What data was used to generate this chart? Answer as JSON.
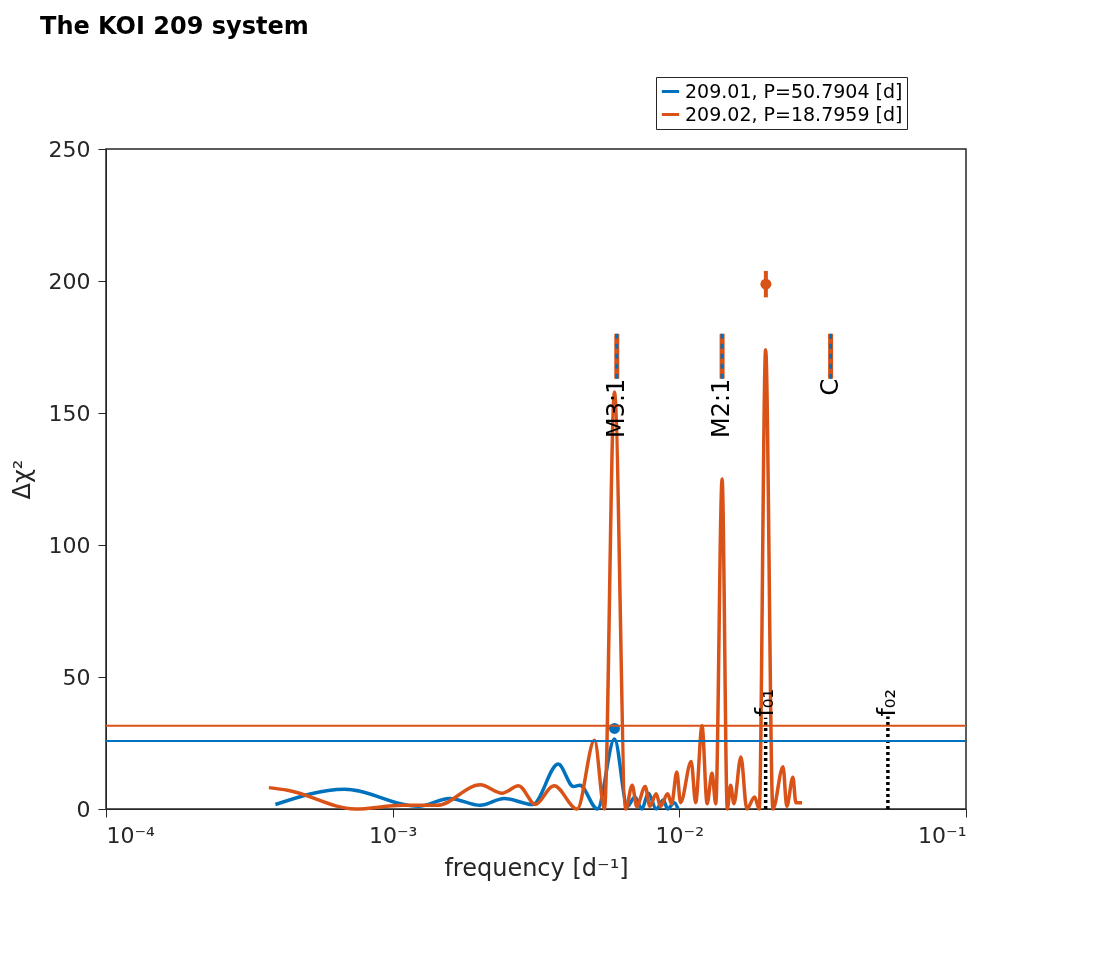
{
  "chart_data": {
    "type": "line",
    "title": "The KOI 209 system",
    "xlabel": "frequency [d⁻¹]",
    "ylabel": "Δχ²",
    "log": "x",
    "xlim": [
      0.0001,
      0.1
    ],
    "xticks": [
      {
        "value": 0.0001,
        "label": "10⁻⁴"
      },
      {
        "value": 0.001,
        "label": "10⁻³"
      },
      {
        "value": 0.01,
        "label": "10⁻²"
      },
      {
        "value": 0.1,
        "label": "10⁻¹"
      }
    ],
    "ylim": [
      0,
      250
    ],
    "yticks": [
      0,
      50,
      100,
      150,
      200,
      250
    ],
    "grid": false,
    "legend": "top right",
    "series": [
      {
        "name": "209.01, P=50.7904 [d]",
        "color": "#0072bd",
        "line_style": "solid",
        "x": [
          0.00039,
          0.00068,
          0.00123,
          0.00158,
          0.00202,
          0.00245,
          0.00308,
          0.00378,
          0.00427,
          0.0045,
          0.00518,
          0.00594,
          0.00659,
          0.007,
          0.0074,
          0.0078,
          0.0083,
          0.0088,
          0.0091,
          0.0096,
          0.0099
        ],
        "values": [
          1.7,
          7.5,
          1,
          4,
          1.4,
          4,
          1.7,
          17,
          8.5,
          9,
          0,
          26.5,
          1,
          4.5,
          0,
          6,
          0,
          3.4,
          0,
          2.4,
          0
        ]
      },
      {
        "name": "209.02, P=18.7959 [d]",
        "color": "#d95319",
        "line_style": "solid",
        "x": [
          0.00037,
          0.00043,
          0.00074,
          0.00108,
          0.00143,
          0.00202,
          0.00241,
          0.00275,
          0.00315,
          0.00359,
          0.00366,
          0.0044,
          0.00506,
          0.00548,
          0.00594,
          0.0065,
          0.00685,
          0.0071,
          0.0076,
          0.0079,
          0.0083,
          0.0086,
          0.0091,
          0.0094,
          0.0098,
          0.0101,
          0.011,
          0.0114,
          0.012,
          0.0125,
          0.013,
          0.0134,
          0.0141,
          0.0147,
          0.0151,
          0.0155,
          0.0164,
          0.0172,
          0.0183,
          0.019,
          0.02,
          0.0212,
          0.023,
          0.0237,
          0.0249,
          0.0255,
          0.0268
        ],
        "values": [
          8.1,
          7.1,
          0,
          1.4,
          1.4,
          9.2,
          6,
          8.8,
          1.7,
          8.5,
          8.8,
          0,
          26,
          0,
          158,
          0,
          9,
          1,
          8.5,
          1,
          5.8,
          1,
          5.8,
          2,
          14,
          2.4,
          18,
          2.4,
          31.5,
          2,
          13.6,
          2,
          125,
          0,
          9,
          2,
          19.7,
          0,
          4.5,
          0,
          174,
          0,
          16,
          1,
          12,
          2.4,
          2.4
        ]
      },
      {
        "type": "scatter",
        "color": "#0072bd",
        "marker": "circle",
        "x": [
          0.00594
        ],
        "values": [
          30.5
        ]
      },
      {
        "type": "scatter",
        "color": "#d95319",
        "marker": "circle",
        "x": [
          0.02004
        ],
        "values": [
          198.8
        ],
        "errors": [
          5
        ]
      },
      {
        "type": "line",
        "color": "#d95319",
        "line_style": "solid",
        "x": [
          0.00605,
          0.00605
        ],
        "values": [
          163,
          180
        ]
      },
      {
        "type": "line",
        "color": "#0072bd",
        "line_style": "dashed",
        "x": [
          0.00605,
          0.00605
        ],
        "values": [
          163,
          180
        ]
      },
      {
        "type": "line",
        "color": "#d95319",
        "line_style": "solid",
        "x": [
          0.0141,
          0.0141
        ],
        "values": [
          163,
          180
        ]
      },
      {
        "type": "line",
        "color": "#0072bd",
        "line_style": "dashed",
        "x": [
          0.0141,
          0.0141
        ],
        "values": [
          163,
          180
        ]
      },
      {
        "type": "line",
        "color": "#d95319",
        "line_style": "solid",
        "x": [
          0.0337,
          0.0337
        ],
        "values": [
          163,
          180
        ]
      },
      {
        "type": "line",
        "color": "#0072bd",
        "line_style": "dashed",
        "x": [
          0.0337,
          0.0337
        ],
        "values": [
          163,
          180
        ]
      },
      {
        "type": "line",
        "color": "#000000",
        "line_style": "dotted",
        "x": [
          0.02,
          0.02
        ],
        "values": [
          0,
          34.6
        ]
      },
      {
        "type": "line",
        "color": "#000000",
        "line_style": "dotted",
        "x": [
          0.0534,
          0.0534
        ],
        "values": [
          0,
          35
        ]
      }
    ],
    "ref_lines": [
      {
        "axis": "y",
        "value": 31.5,
        "color": "#d95319"
      },
      {
        "axis": "y",
        "value": 25.8,
        "color": "#0072bd"
      }
    ],
    "annotations": [
      {
        "text": "M3:1",
        "x": 0.00605,
        "y": 163
      },
      {
        "text": "M2:1",
        "x": 0.0141,
        "y": 163
      },
      {
        "text": "C",
        "x": 0.0337,
        "y": 163
      },
      {
        "text": "f₀₁",
        "x": 0.02,
        "y": 35
      },
      {
        "text": "f₀₂",
        "x": 0.0534,
        "y": 35
      }
    ]
  }
}
